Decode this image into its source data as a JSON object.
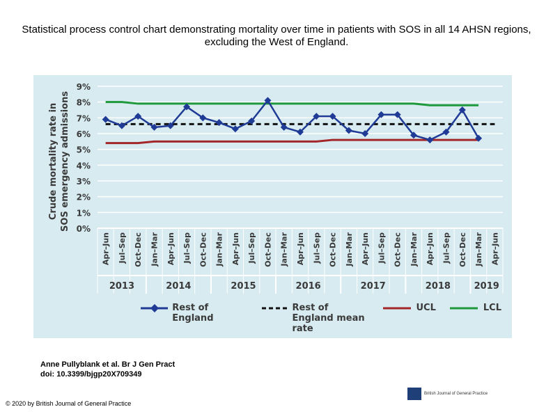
{
  "title": "Statistical process control chart demonstrating mortality over time in patients with SOS in all 14 AHSN regions, excluding the West of England.",
  "citation": [
    "Anne Pullyblank et al. Br J Gen Pract",
    "doi: 10.3399/bjgp20X709349"
  ],
  "copyright": "© 2020 by British Journal of General Practice",
  "logo_text": "British Journal of General Practice",
  "chart_data": {
    "type": "line",
    "y_label": [
      "Crude mortality rate in",
      "SOS emergency admissions"
    ],
    "categories": [
      "Apr–Jun",
      "Jul–Sep",
      "Oct–Dec",
      "Jan–Mar",
      "Apr–Jun",
      "Jul–Sep",
      "Oct–Dec",
      "Jan–Mar",
      "Apr–Jun",
      "Jul–Sep",
      "Oct–Dec",
      "Jan–Mar",
      "Apr–Jun",
      "Jul–Sep",
      "Oct–Dec",
      "Jan–Mar",
      "Apr–Jun",
      "Jul–Sep",
      "Oct–Dec",
      "Jan–Mar",
      "Apr–Jun",
      "Jul–Sep",
      "Oct–Dec",
      "Jan–Mar",
      "Apr–Jun"
    ],
    "category_groups": [
      "2013",
      "2013",
      "2013",
      "2014",
      "2014",
      "2014",
      "2014",
      "2015",
      "2015",
      "2015",
      "2015",
      "2016",
      "2016",
      "2016",
      "2016",
      "2017",
      "2017",
      "2017",
      "2017",
      "2018",
      "2018",
      "2018",
      "2018",
      "2019",
      "2019"
    ],
    "ylim": [
      0,
      9
    ],
    "yticks": [
      {
        "value": 0,
        "label": "0%"
      },
      {
        "value": 1,
        "label": "1%"
      },
      {
        "value": 2,
        "label": "2%"
      },
      {
        "value": 3,
        "label": "3%"
      },
      {
        "value": 4,
        "label": "4%"
      },
      {
        "value": 5,
        "label": "5%"
      },
      {
        "value": 6,
        "label": "6%"
      },
      {
        "value": 7,
        "label": "7%"
      },
      {
        "value": 8,
        "label": "8%"
      },
      {
        "value": 9,
        "label": "9%"
      }
    ],
    "grid": true,
    "series": [
      {
        "name": "Rest of England",
        "color": "#1f3b96",
        "marker": "diamond",
        "line_style": "solid",
        "values": [
          6.9,
          6.5,
          7.1,
          6.4,
          6.5,
          7.7,
          7.0,
          6.7,
          6.3,
          6.8,
          8.1,
          6.4,
          6.1,
          7.1,
          7.1,
          6.2,
          6.0,
          7.2,
          7.2,
          5.9,
          5.6,
          6.1,
          7.5,
          5.7,
          null
        ]
      },
      {
        "name": "Rest of England mean rate",
        "color": "#111111",
        "line_style": "dashed",
        "values": [
          6.6,
          6.6,
          6.6,
          6.6,
          6.6,
          6.6,
          6.6,
          6.6,
          6.6,
          6.6,
          6.6,
          6.6,
          6.6,
          6.6,
          6.6,
          6.6,
          6.6,
          6.6,
          6.6,
          6.6,
          6.6,
          6.6,
          6.6,
          6.6,
          6.6
        ]
      },
      {
        "name": "UCL",
        "color": "#a3262a",
        "line_style": "solid",
        "values": [
          5.4,
          5.4,
          5.4,
          5.5,
          5.5,
          5.5,
          5.5,
          5.5,
          5.5,
          5.5,
          5.5,
          5.5,
          5.5,
          5.5,
          5.6,
          5.6,
          5.6,
          5.6,
          5.6,
          5.6,
          5.6,
          5.6,
          5.6,
          5.6,
          null
        ]
      },
      {
        "name": "LCL",
        "color": "#1e9a3c",
        "line_style": "solid",
        "values": [
          8.0,
          8.0,
          7.9,
          7.9,
          7.9,
          7.9,
          7.9,
          7.9,
          7.9,
          7.9,
          7.9,
          7.9,
          7.9,
          7.9,
          7.9,
          7.9,
          7.9,
          7.9,
          7.9,
          7.9,
          7.8,
          7.8,
          7.8,
          7.8,
          null
        ]
      }
    ]
  }
}
